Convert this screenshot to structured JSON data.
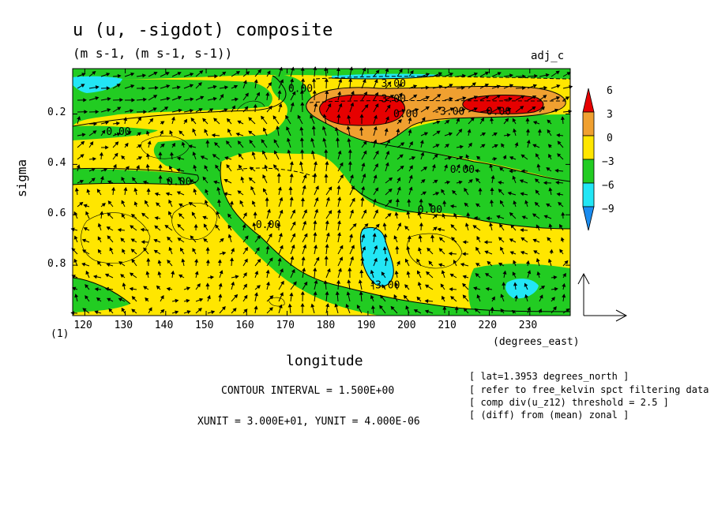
{
  "title": "u (u, -sigdot) composite",
  "subtitle": "(m s-1, (m s-1, s-1))",
  "tag": "adj_c",
  "panel_label": "(1)",
  "x_units": "(degrees_east)",
  "contour_interval": "CONTOUR INTERVAL = 1.500E+00",
  "xy_unit": "XUNIT = 3.000E+01, YUNIT = 4.000E-06",
  "info_lines": [
    "[ lat=1.3953 degrees_north ]",
    "[ refer to free_kelvin spct filtering data ]",
    "[ comp div(u_z12) threshold = 2.5 ]",
    "[ (diff) from (mean) zonal ]"
  ],
  "colors": {
    "red": "#e60000",
    "orange": "#f0a030",
    "yellow": "#ffe600",
    "green": "#22cc22",
    "cyan": "#22e6f5",
    "blue": "#1a8cf0"
  },
  "chart_data": {
    "type": "contour",
    "xlabel": "longitude",
    "ylabel": "sigma",
    "xlim": [
      117,
      240
    ],
    "ylim": [
      1.0,
      0.02
    ],
    "xticks": [
      120,
      130,
      140,
      150,
      160,
      170,
      180,
      190,
      200,
      210,
      220,
      230
    ],
    "yticks": [
      0.2,
      0.4,
      0.6,
      0.8
    ],
    "ytick_labels": [
      "0.2",
      "0.4",
      "0.6",
      "0.8"
    ],
    "colorbar": {
      "levels": [
        -9,
        -6,
        -3,
        0,
        3,
        6
      ],
      "labels": [
        "6",
        "3",
        "0",
        "-3",
        "-6",
        "-9"
      ],
      "colors": [
        "#e60000",
        "#f0a030",
        "#ffe600",
        "#22cc22",
        "#22e6f5",
        "#1a8cf0"
      ]
    },
    "contour_labels": [
      {
        "text": "0.00",
        "x": 173,
        "y": 0.1
      },
      {
        "text": "3.00",
        "x": 196,
        "y": 0.08
      },
      {
        "text": "3.00",
        "x": 196,
        "y": 0.14
      },
      {
        "text": "0.00",
        "x": 199,
        "y": 0.2
      },
      {
        "text": "-3.00",
        "x": 209,
        "y": 0.19
      },
      {
        "text": "0.00",
        "x": 222,
        "y": 0.19
      },
      {
        "text": "0.00",
        "x": 128,
        "y": 0.27
      },
      {
        "text": "0.00",
        "x": 143,
        "y": 0.47
      },
      {
        "text": "0.00",
        "x": 213,
        "y": 0.42
      },
      {
        "text": "0.00",
        "x": 205,
        "y": 0.58
      },
      {
        "text": "0.00",
        "x": 165,
        "y": 0.64
      },
      {
        "text": "-3.00",
        "x": 193,
        "y": 0.88
      }
    ],
    "reference_vector": {
      "u": 30,
      "minus_sigdot": 4e-06
    }
  }
}
